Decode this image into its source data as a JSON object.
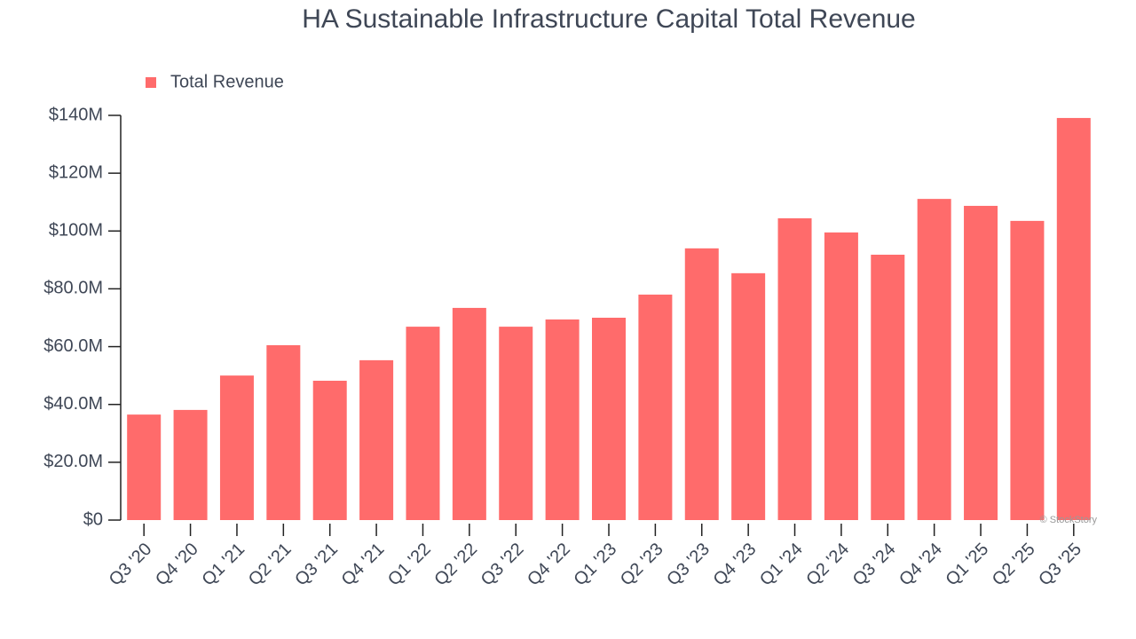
{
  "chart_data": {
    "type": "bar",
    "title": "HA Sustainable Infrastructure Capital Total Revenue",
    "categories": [
      "Q3 '20",
      "Q4 '20",
      "Q1 '21",
      "Q2 '21",
      "Q3 '21",
      "Q4 '21",
      "Q1 '22",
      "Q2 '22",
      "Q3 '22",
      "Q4 '22",
      "Q1 '23",
      "Q2 '23",
      "Q3 '23",
      "Q4 '23",
      "Q1 '24",
      "Q2 '24",
      "Q3 '24",
      "Q4 '24",
      "Q1 '25",
      "Q2 '25",
      "Q3 '25"
    ],
    "series": [
      {
        "name": "Total Revenue",
        "color": "#ff6b6b",
        "values": [
          36500000,
          38100000,
          50000000,
          60500000,
          48200000,
          55300000,
          66900000,
          73400000,
          66900000,
          69400000,
          70000000,
          78000000,
          94000000,
          85400000,
          104400000,
          99500000,
          91800000,
          111100000,
          108700000,
          103500000,
          139100000
        ]
      }
    ],
    "ylim": [
      0,
      140000000
    ],
    "yticks": [
      {
        "value": 0,
        "label": "$0"
      },
      {
        "value": 20000000,
        "label": "$20.0M"
      },
      {
        "value": 40000000,
        "label": "$40.0M"
      },
      {
        "value": 60000000,
        "label": "$60.0M"
      },
      {
        "value": 80000000,
        "label": "$80.0M"
      },
      {
        "value": 100000000,
        "label": "$100M"
      },
      {
        "value": 120000000,
        "label": "$120M"
      },
      {
        "value": 140000000,
        "label": "$140M"
      }
    ],
    "grid": false,
    "legend": "top-left",
    "watermark": "© StockStory"
  }
}
